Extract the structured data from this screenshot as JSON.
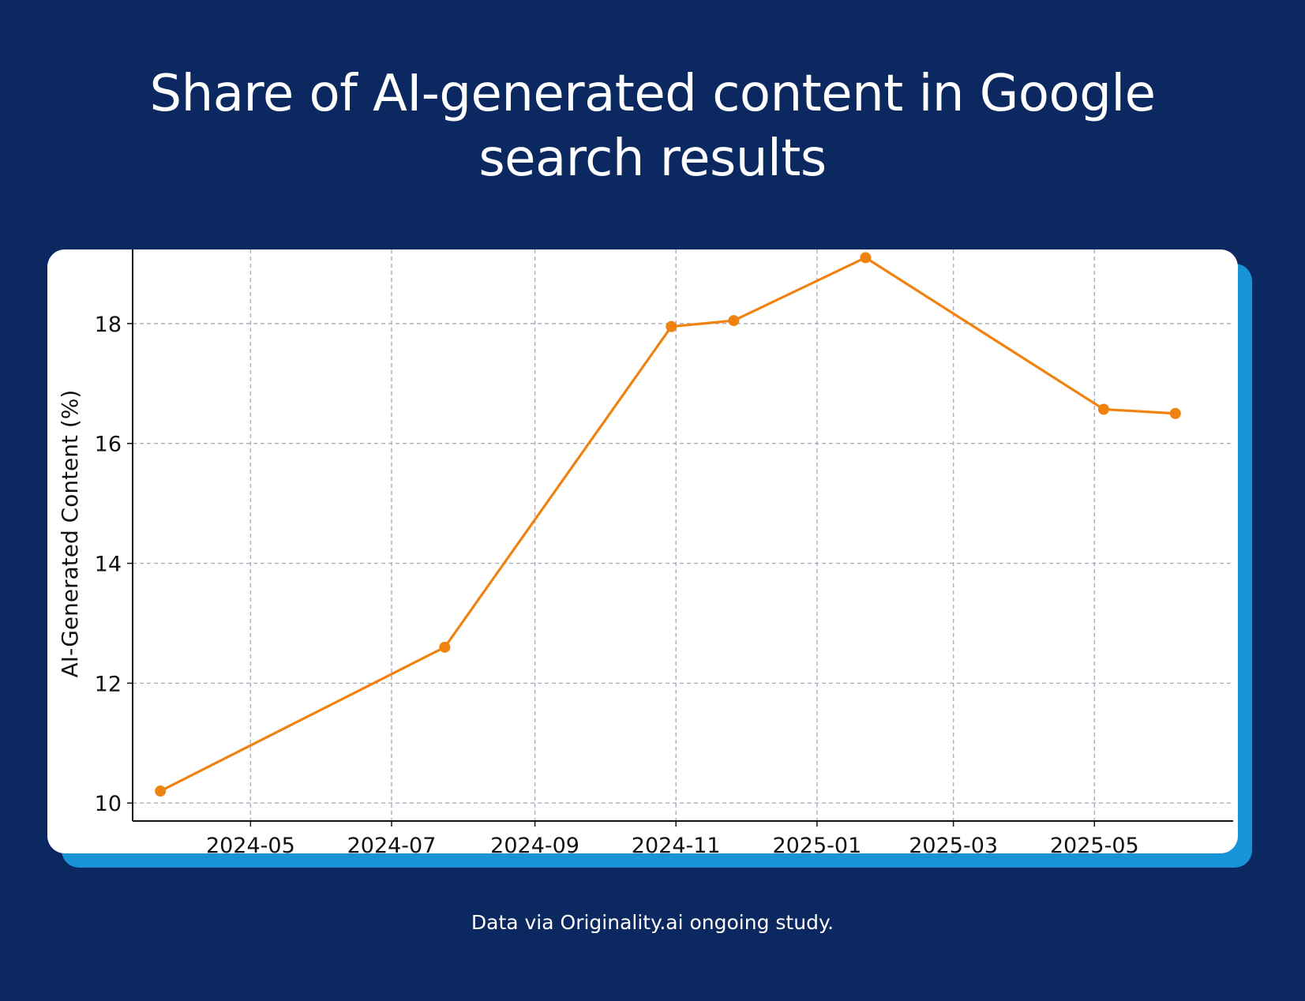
{
  "page": {
    "title_line1": "Share of AI-generated content in Google",
    "title_line2": "search results",
    "footer": "Data via Originality.ai ongoing study.",
    "background_color": "#0b2860",
    "card_accent_color": "#1893d8"
  },
  "chart_data": {
    "type": "line",
    "title": "Share of AI-generated content in Google search results",
    "xlabel": "",
    "ylabel": "AI-Generated Content (%)",
    "x_type": "date",
    "xlim": [
      "2024-03-11",
      "2025-06-30"
    ],
    "ylim": [
      9.7,
      19.5
    ],
    "x_ticks": [
      "2024-05-01",
      "2024-07-01",
      "2024-09-01",
      "2024-11-01",
      "2025-01-01",
      "2025-03-01",
      "2025-05-01"
    ],
    "x_tick_labels": [
      "2024-05",
      "2024-07",
      "2024-09",
      "2024-11",
      "2025-01",
      "2025-03",
      "2025-05"
    ],
    "y_ticks": [
      10,
      12,
      14,
      16,
      18
    ],
    "y_tick_labels": [
      "10",
      "12",
      "14",
      "16",
      "18"
    ],
    "grid": true,
    "series": [
      {
        "color": "#f0830f",
        "marker": "circle",
        "points": [
          {
            "x": "2024-03-23",
            "y": 10.2
          },
          {
            "x": "2024-07-24",
            "y": 12.6
          },
          {
            "x": "2024-10-30",
            "y": 17.95
          },
          {
            "x": "2024-11-26",
            "y": 18.05
          },
          {
            "x": "2025-01-22",
            "y": 19.1
          },
          {
            "x": "2025-05-05",
            "y": 16.57
          },
          {
            "x": "2025-06-05",
            "y": 16.5
          }
        ]
      }
    ]
  }
}
